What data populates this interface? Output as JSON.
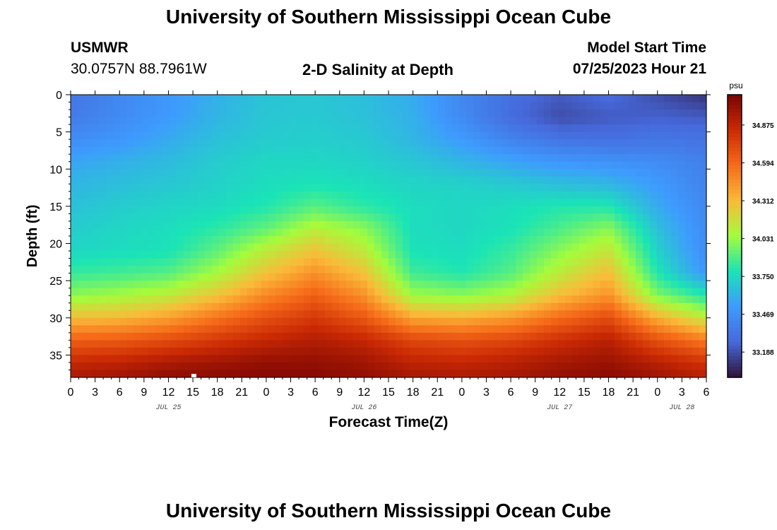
{
  "page": {
    "title": "University of Southern Mississippi Ocean Cube",
    "title_repeat": "University of Southern Mississippi Ocean Cube",
    "station": "USMWR",
    "coords": "30.0757N  88.7961W",
    "plot_title": "2-D Salinity at Depth",
    "model_start_label": "Model Start Time",
    "model_start_value": "07/25/2023 Hour 21"
  },
  "chart_data": {
    "type": "heatmap",
    "title": "2-D Salinity at Depth",
    "xlabel": "Forecast Time(Z)",
    "ylabel": "Depth (ft)",
    "x_range_hours": [
      0,
      78
    ],
    "y_range_ft": [
      0,
      38
    ],
    "x_tick_labels": [
      "0",
      "3",
      "6",
      "9",
      "12",
      "15",
      "18",
      "21",
      "0",
      "3",
      "6",
      "9",
      "12",
      "15",
      "18",
      "21",
      "0",
      "3",
      "6",
      "9",
      "12",
      "15",
      "18",
      "21",
      "0",
      "3",
      "6"
    ],
    "y_ticks": [
      0,
      5,
      10,
      15,
      20,
      25,
      30,
      35
    ],
    "y_tick_labels": [
      "0",
      "5",
      "10",
      "15",
      "20",
      "25",
      "30",
      "35"
    ],
    "date_labels": [
      {
        "label": "JUL 25",
        "hour": 12
      },
      {
        "label": "JUL 26",
        "hour": 36
      },
      {
        "label": "JUL 27",
        "hour": 60
      },
      {
        "label": "JUL 28",
        "hour": 75
      }
    ],
    "colorbar": {
      "unit": "psu",
      "min": 33.0,
      "max": 35.1,
      "ticks": [
        34.875,
        34.594,
        34.312,
        34.031,
        33.75,
        33.469,
        33.188
      ],
      "tick_labels": [
        "34.875",
        "34.594",
        "34.312",
        "34.031",
        "33.750",
        "33.469",
        "33.188"
      ]
    },
    "field": {
      "hours": [
        0,
        6,
        12,
        18,
        24,
        30,
        36,
        42,
        48,
        54,
        60,
        66,
        72,
        78
      ],
      "depths_ft": [
        0,
        3,
        6,
        9,
        12,
        15,
        18,
        21,
        24,
        27,
        30,
        33,
        36,
        38
      ],
      "salinity_psu": [
        [
          33.33,
          33.42,
          33.5,
          33.6,
          33.67,
          33.68,
          33.65,
          33.58,
          33.42,
          33.3,
          33.22,
          33.28,
          33.18,
          33.1
        ],
        [
          33.36,
          33.44,
          33.52,
          33.62,
          33.68,
          33.69,
          33.66,
          33.6,
          33.44,
          33.28,
          33.18,
          33.22,
          33.24,
          33.22
        ],
        [
          33.45,
          33.5,
          33.58,
          33.66,
          33.7,
          33.71,
          33.69,
          33.62,
          33.52,
          33.4,
          33.32,
          33.3,
          33.33,
          33.32
        ],
        [
          33.56,
          33.6,
          33.64,
          33.7,
          33.74,
          33.74,
          33.72,
          33.68,
          33.62,
          33.56,
          33.5,
          33.48,
          33.45,
          33.38
        ],
        [
          33.62,
          33.65,
          33.68,
          33.72,
          33.76,
          33.78,
          33.76,
          33.73,
          33.72,
          33.69,
          33.65,
          33.62,
          33.52,
          33.4
        ],
        [
          33.66,
          33.7,
          33.73,
          33.75,
          33.8,
          33.9,
          33.82,
          33.76,
          33.74,
          33.76,
          33.8,
          33.8,
          33.58,
          33.42
        ],
        [
          33.7,
          33.74,
          33.76,
          33.82,
          33.92,
          34.1,
          34.0,
          33.76,
          33.74,
          33.78,
          33.88,
          34.0,
          33.66,
          33.44
        ],
        [
          33.74,
          33.76,
          33.78,
          33.92,
          34.12,
          34.28,
          34.12,
          33.78,
          33.76,
          33.84,
          34.0,
          34.15,
          33.72,
          33.45
        ],
        [
          33.84,
          33.86,
          33.9,
          34.06,
          34.28,
          34.45,
          34.28,
          33.86,
          33.8,
          33.9,
          34.12,
          34.3,
          33.8,
          33.5
        ],
        [
          34.0,
          34.05,
          34.12,
          34.28,
          34.48,
          34.62,
          34.45,
          34.04,
          34.0,
          34.08,
          34.3,
          34.45,
          33.98,
          33.8
        ],
        [
          34.3,
          34.32,
          34.4,
          34.55,
          34.68,
          34.78,
          34.65,
          34.38,
          34.35,
          34.42,
          34.58,
          34.7,
          34.35,
          34.12
        ],
        [
          34.62,
          34.64,
          34.7,
          34.78,
          34.86,
          34.92,
          34.86,
          34.72,
          34.68,
          34.72,
          34.82,
          34.9,
          34.68,
          34.52
        ],
        [
          34.85,
          34.88,
          34.94,
          34.98,
          35.02,
          35.02,
          34.98,
          34.88,
          34.86,
          34.9,
          34.96,
          35.0,
          34.9,
          34.8
        ],
        [
          34.95,
          34.98,
          35.04,
          35.05,
          35.06,
          35.06,
          35.02,
          34.96,
          34.94,
          34.96,
          35.02,
          35.05,
          34.98,
          34.9
        ]
      ]
    }
  },
  "colors": {
    "colormap": [
      "#30123b",
      "#4669db",
      "#3e9bfe",
      "#1ae4b6",
      "#a4fc3c",
      "#faba39",
      "#f66b19",
      "#cb2a04",
      "#7a0403"
    ]
  }
}
